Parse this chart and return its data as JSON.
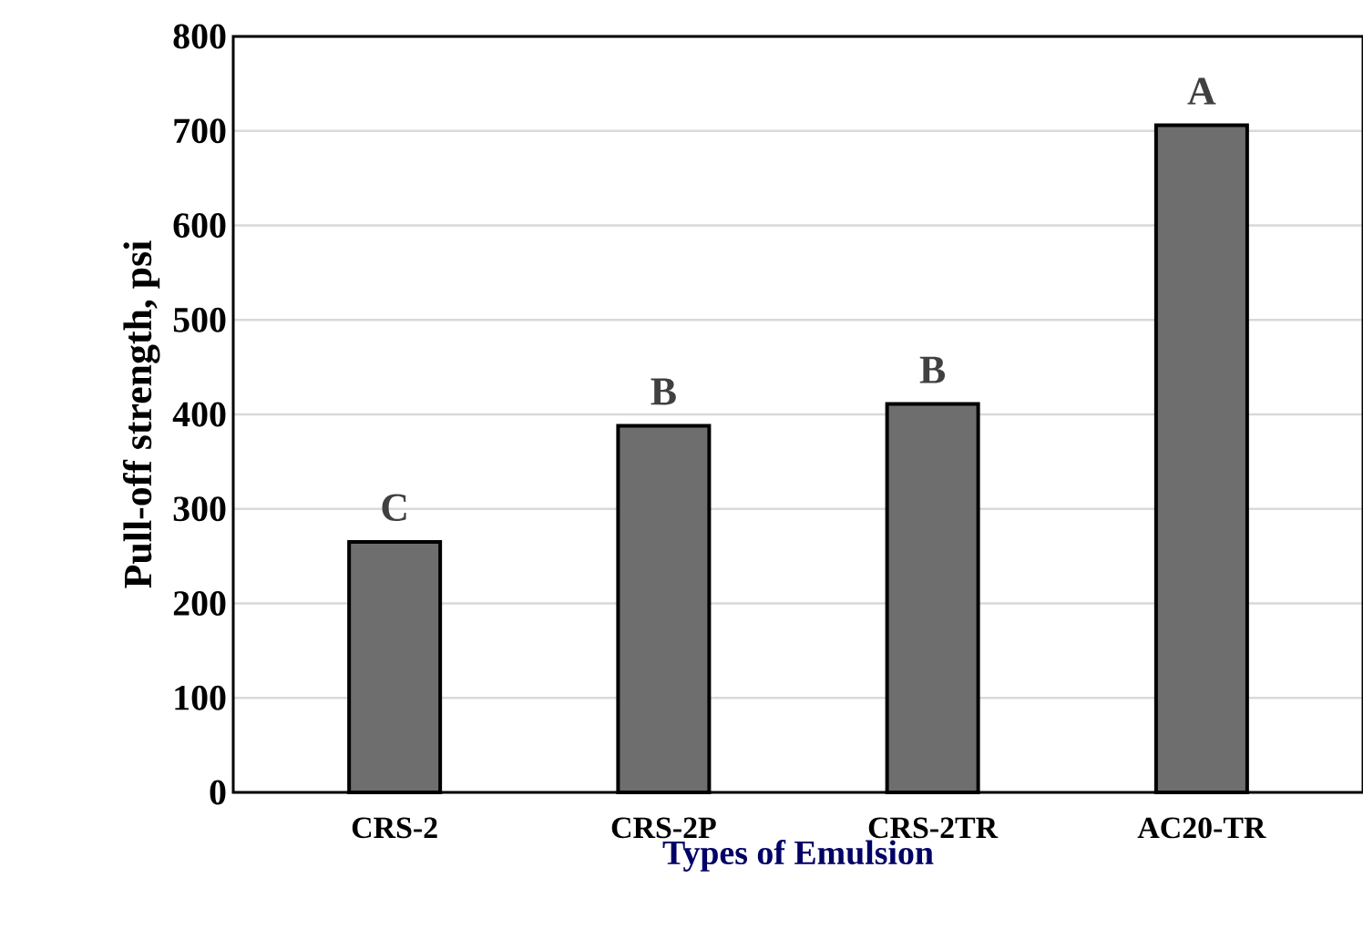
{
  "chart_data": {
    "type": "bar",
    "xlabel": "Types of Emulsion",
    "ylabel": "Pull-off strength, psi",
    "categories": [
      "CRS-2",
      "CRS-2P",
      "CRS-2TR",
      "AC20-TR"
    ],
    "values": [
      265,
      388,
      411,
      706
    ],
    "color": "#6e6e6e",
    "ylim": [
      0,
      800
    ],
    "yticks": [
      0,
      100,
      200,
      300,
      400,
      500,
      600,
      700,
      800
    ],
    "grid": "y",
    "annotations": [
      {
        "text": "C",
        "x": "CRS-2",
        "y": 265
      },
      {
        "text": "B",
        "x": "CRS-2P",
        "y": 388
      },
      {
        "text": "B",
        "x": "CRS-2TR",
        "y": 411
      },
      {
        "text": "A",
        "x": "AC20-TR",
        "y": 706
      }
    ]
  }
}
